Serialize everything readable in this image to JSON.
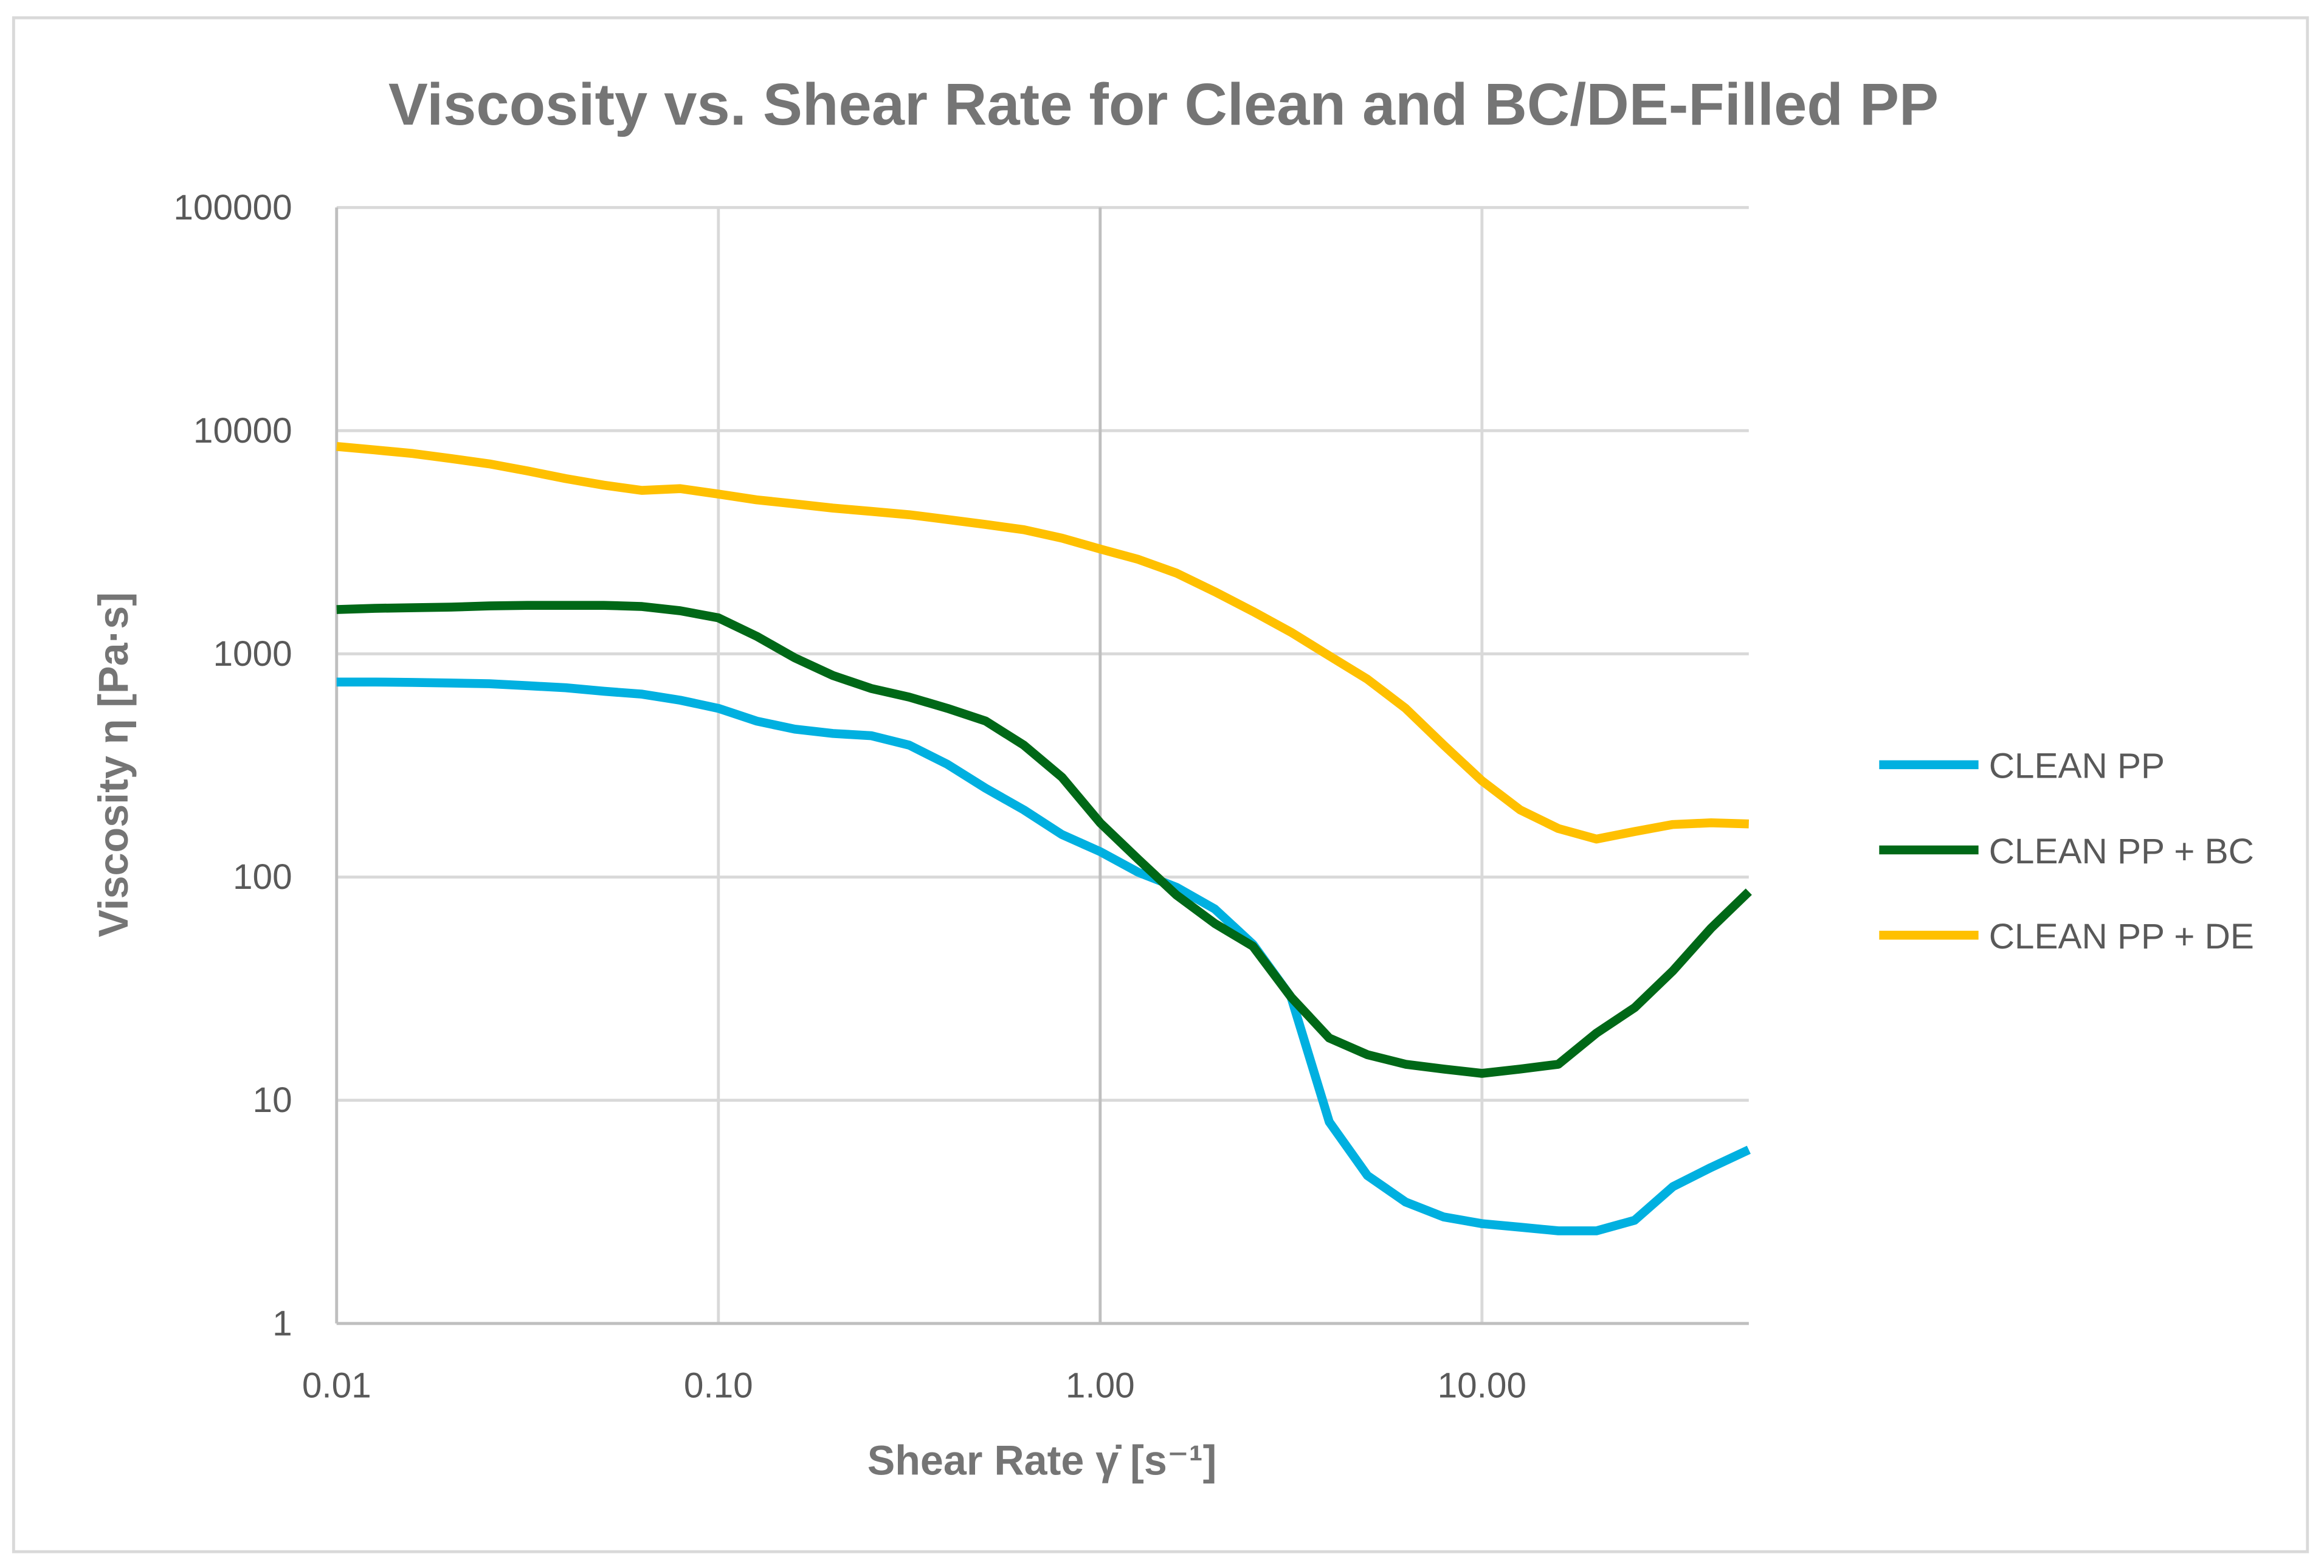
{
  "chart_data": {
    "type": "line",
    "title": "Viscosity vs. Shear Rate for Clean and BC/DE-Filled PP",
    "xlabel": "Shear Rate γ̇ [s⁻¹]",
    "ylabel": "Viscosity η [Pa·s]",
    "xscale": "log",
    "yscale": "log",
    "xlim": [
      0.01,
      50
    ],
    "ylim": [
      1,
      100000
    ],
    "grid": true,
    "legend_position": "right",
    "x_ticks": [
      "0.01",
      "0.10",
      "1.00",
      "10.00"
    ],
    "x_tick_values": [
      0.01,
      0.1,
      1,
      10
    ],
    "y_ticks": [
      "1",
      "10",
      "100",
      "1000",
      "10000",
      "100000"
    ],
    "y_tick_values": [
      1,
      10,
      100,
      1000,
      10000,
      100000
    ],
    "x_log_step": 0.1,
    "series": [
      {
        "name": "CLEAN PP",
        "color": "#00B0E0",
        "values": [
          748,
          748,
          745,
          740,
          735,
          720,
          705,
          680,
          660,
          620,
          570,
          500,
          460,
          440,
          430,
          390,
          320,
          250,
          200,
          155,
          130,
          105,
          90,
          72,
          50,
          29,
          8,
          4.6,
          3.5,
          3.0,
          2.8,
          2.7,
          2.6,
          2.6,
          2.9,
          4.1,
          5.0,
          6.0
        ]
      },
      {
        "name": "CLEAN PP + BC",
        "color": "#006817",
        "values": [
          1580,
          1600,
          1610,
          1620,
          1640,
          1650,
          1650,
          1650,
          1630,
          1560,
          1450,
          1200,
          960,
          800,
          700,
          640,
          570,
          500,
          390,
          280,
          175,
          120,
          83,
          62,
          49,
          29,
          19,
          16,
          14.5,
          13.8,
          13.2,
          13.8,
          14.5,
          20,
          26,
          38,
          59,
          86
        ]
      },
      {
        "name": "CLEAN PP + DE",
        "color": "#FFC000",
        "values": [
          8500,
          8200,
          7900,
          7500,
          7100,
          6600,
          6100,
          5700,
          5400,
          5500,
          5200,
          4900,
          4700,
          4500,
          4350,
          4200,
          4000,
          3800,
          3600,
          3300,
          2950,
          2650,
          2300,
          1900,
          1550,
          1250,
          980,
          770,
          570,
          390,
          270,
          200,
          165,
          148,
          160,
          172,
          175,
          173
        ]
      }
    ]
  }
}
